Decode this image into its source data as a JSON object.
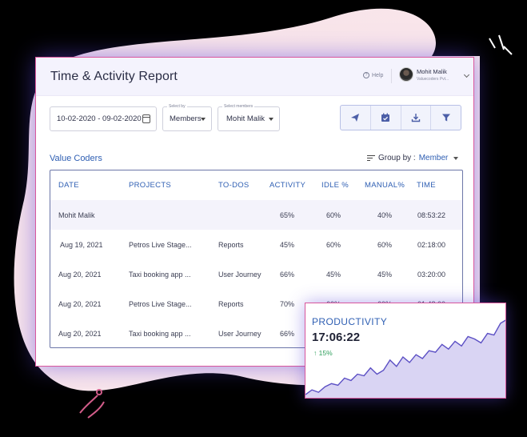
{
  "header": {
    "title": "Time & Activity Report",
    "help_label": "Help",
    "user_name": "Mohit Malik",
    "user_org": "Valuecoders Pvt..."
  },
  "filters": {
    "date_range": "10-02-2020 - 09-02-2020",
    "select_by_label": "Select by",
    "select_by_value": "Members",
    "select_members_label": "Select members",
    "select_members_value": "Mohit Malik"
  },
  "toolbar": {
    "icons": [
      "send-icon",
      "calendar-check-icon",
      "download-icon",
      "filter-icon"
    ]
  },
  "team_name": "Value Coders",
  "group_by": {
    "label": "Group by :",
    "value": "Member"
  },
  "table": {
    "headers": {
      "date": "DATE",
      "projects": "PROJECTS",
      "todos": "TO-DOS",
      "activity": "ACTIVITY",
      "idle": "IDLE %",
      "manual": "MANUAL%",
      "time": "TIME"
    },
    "summary": {
      "name": "Mohit Malik",
      "activity": "65%",
      "idle": "60%",
      "manual": "40%",
      "time": "08:53:22"
    },
    "rows": [
      {
        "date": "Aug 19, 2021",
        "project": "Petros Live Stage...",
        "todo": "Reports",
        "activity": "45%",
        "idle": "60%",
        "manual": "60%",
        "time": "02:18:00"
      },
      {
        "date": "Aug 20, 2021",
        "project": "Taxi booking app ...",
        "todo": "User Journey",
        "activity": "66%",
        "idle": "45%",
        "manual": "45%",
        "time": "03:20:00"
      },
      {
        "date": "Aug 20, 2021",
        "project": "Petros Live Stage...",
        "todo": "Reports",
        "activity": "70%",
        "idle": "60%",
        "manual": "60%",
        "time": "01:48:00"
      },
      {
        "date": "Aug 20, 2021",
        "project": "Taxi booking app ...",
        "todo": "User Journey",
        "activity": "66%",
        "idle": "",
        "manual": "",
        "time": ""
      }
    ]
  },
  "productivity": {
    "title": "PRODUCTIVITY",
    "total_time": "17:06:22",
    "change": "15%",
    "line_color": "#5b4fc4",
    "fill_color": "#d9d4f3",
    "trend": [
      4,
      10,
      7,
      14,
      18,
      16,
      25,
      22,
      30,
      28,
      38,
      30,
      35,
      48,
      40,
      52,
      45,
      55,
      50,
      60,
      58,
      68,
      62,
      72,
      66,
      78,
      75,
      70,
      82,
      80,
      95,
      100
    ]
  }
}
